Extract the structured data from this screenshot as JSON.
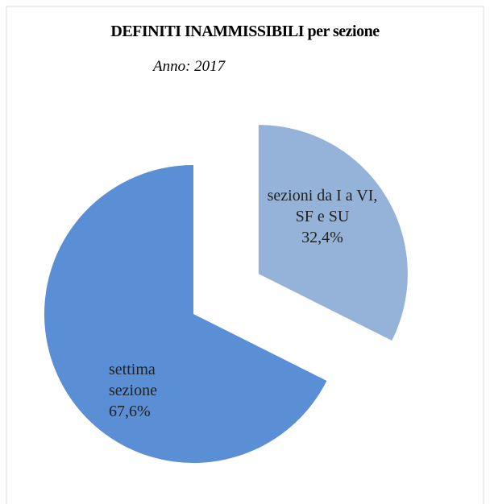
{
  "chart_data": {
    "type": "pie",
    "title": "DEFINITI INAMMISSIBILI per sezione",
    "subtitle": "Anno: 2017",
    "categories": [
      "sezioni da I a VI, SF e SU",
      "settima sezione"
    ],
    "values": [
      32.4,
      67.6
    ],
    "value_labels": [
      "32,4%",
      "67,6%"
    ],
    "colors": [
      "#95b3d8",
      "#5a8ed5"
    ]
  }
}
